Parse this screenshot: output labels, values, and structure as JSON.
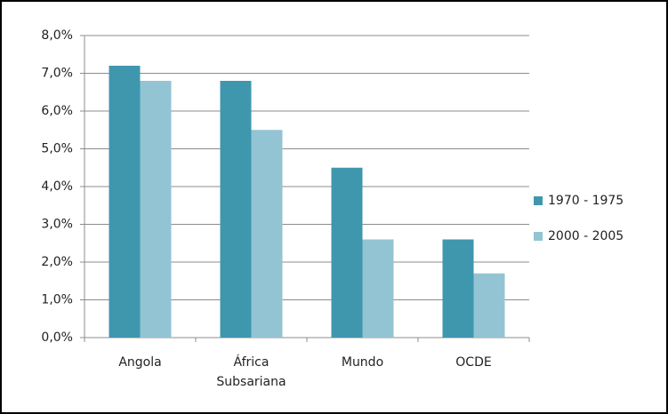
{
  "chart_data": {
    "type": "bar",
    "categories": [
      "Angola",
      "África Subsariana",
      "Mundo",
      "OCDE"
    ],
    "series": [
      {
        "name": "1970 - 1975",
        "color": "#3f97ae",
        "values": [
          7.2,
          6.8,
          4.5,
          2.6
        ]
      },
      {
        "name": "2000 - 2005",
        "color": "#93c4d4",
        "values": [
          6.8,
          5.5,
          2.6,
          1.7
        ]
      }
    ],
    "ylim": [
      0,
      8
    ],
    "yticks": [
      {
        "value": 0,
        "label": "0,0%"
      },
      {
        "value": 1,
        "label": "1,0%"
      },
      {
        "value": 2,
        "label": "2,0%"
      },
      {
        "value": 3,
        "label": "3,0%"
      },
      {
        "value": 4,
        "label": "4,0%"
      },
      {
        "value": 5,
        "label": "5,0%"
      },
      {
        "value": 6,
        "label": "6,0%"
      },
      {
        "value": 7,
        "label": "7,0%"
      },
      {
        "value": 8,
        "label": "8,0%"
      }
    ],
    "grid": true,
    "legend": "right"
  }
}
